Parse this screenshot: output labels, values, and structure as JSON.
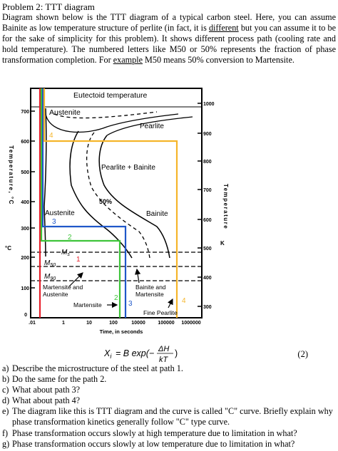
{
  "problem_title": "Problem 2: TTT diagram",
  "intro": {
    "part1": "Diagram shown below is the TTT diagram of a typical carbon steel. Here, you can assume Bainite as low temperature structure of perlite (in fact, it is ",
    "different": "different",
    "part2": " but you can assume it to be for the sake of simplicity for this problem). It shows different process path (cooling rate and hold temperature). The numbered letters like M50 or 50% represents the fraction of phase transformation completion. For ",
    "example": "example",
    "part3": " M50 means 50% conversion to Martensite."
  },
  "diagram": {
    "eutectoid_label": "Eutectoid temperature",
    "austenite_top": "Austenite",
    "pearlite": "Pearlite",
    "pearlite_bainite": "Pearlite + Bainite",
    "fifty_pct": "50%",
    "austenite_mid": "Austenite",
    "bainite": "Bainite",
    "ms": "M",
    "ms_sub": "s",
    "m50": "M",
    "m50_sub": "50",
    "m90": "M",
    "m90_sub": "90",
    "martensite_austenite_1": "Martensite and",
    "martensite_austenite_2": "Austenite",
    "bainite_martensite_1": "Bainite and",
    "bainite_martensite_2": "Martensite",
    "martensite": "Martensite",
    "fine_pearlite": "Fine Pearlite",
    "xlabel": "Time, in seconds",
    "left_axis_label": "Temperature, °C",
    "left_unit": "°C",
    "right_axis_label": "Temperature",
    "right_unit": "K",
    "left_ticks": [
      "700",
      "600",
      "500",
      "400",
      "300",
      "200",
      "100",
      "0"
    ],
    "right_ticks": [
      "1000",
      "900",
      "800",
      "700",
      "600",
      "500",
      "400",
      "300"
    ],
    "x_ticks": [
      ".01",
      "1",
      "10",
      "100",
      "10000",
      "100000",
      "1000000"
    ],
    "path_labels": [
      "1",
      "2",
      "3",
      "4",
      "2",
      "3",
      "4"
    ],
    "colors": {
      "path1": "#e8202a",
      "path2": "#3ec43a",
      "path3": "#1f57c9",
      "path4": "#f5b52a",
      "frame": "#000000"
    }
  },
  "equation": {
    "lhs": "X",
    "lhs_sub": "i",
    "rhs": "= B exp(−",
    "numerator": "ΔH",
    "denominator": "kT",
    "close": ")",
    "number": "(2)"
  },
  "questions": [
    {
      "letter": "a)",
      "text": "Describe the microstructure of the steel at path 1."
    },
    {
      "letter": "b)",
      "text": "Do the same for the path 2."
    },
    {
      "letter": "c)",
      "text": "What about path 3?"
    },
    {
      "letter": "d)",
      "text": "What about path 4?"
    },
    {
      "letter": "e)",
      "text": "The diagram like this is TTT diagram and the curve is called \"C\" curve. Briefly explain why phase transformation kinetics generally follow \"C\" type curve."
    },
    {
      "letter": "f)",
      "text": "Phase transformation occurs slowly at high temperature due to limitation in what?"
    },
    {
      "letter": "g)",
      "text": "Phase transformation occurs slowly at low temperature due to limitation in what?"
    }
  ]
}
